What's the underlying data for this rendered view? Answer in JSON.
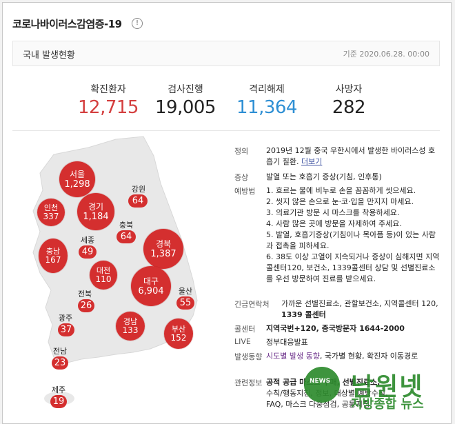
{
  "header": {
    "title": "코로나바이러스감염증-19",
    "info_icon": "!"
  },
  "subbar": {
    "label": "국내 발생현황",
    "timestamp": "기준 2020.06.28. 00:00"
  },
  "stats": [
    {
      "label": "확진환자",
      "value": "12,715",
      "color": "#d43f3f"
    },
    {
      "label": "검사진행",
      "value": "19,005",
      "color": "#222222"
    },
    {
      "label": "격리해제",
      "value": "11,364",
      "color": "#2e8fd4"
    },
    {
      "label": "사망자",
      "value": "282",
      "color": "#222222"
    }
  ],
  "regions": {
    "seoul": {
      "name": "서울",
      "count": "1,298"
    },
    "incheon": {
      "name": "인천",
      "count": "337"
    },
    "gyeonggi": {
      "name": "경기",
      "count": "1,184"
    },
    "gangwon": {
      "name": "강원",
      "count": "64"
    },
    "chungbuk": {
      "name": "충북",
      "count": "64"
    },
    "sejong": {
      "name": "세종",
      "count": "49"
    },
    "chungnam": {
      "name": "충남",
      "count": "167"
    },
    "daejeon": {
      "name": "대전",
      "count": "110"
    },
    "gyeongbuk": {
      "name": "경북",
      "count": "1,387"
    },
    "jeonbuk": {
      "name": "전북",
      "count": "26"
    },
    "daegu": {
      "name": "대구",
      "count": "6,904"
    },
    "ulsan": {
      "name": "울산",
      "count": "55"
    },
    "gwangju": {
      "name": "광주",
      "count": "37"
    },
    "gyeongnam": {
      "name": "경남",
      "count": "133"
    },
    "busan": {
      "name": "부산",
      "count": "152"
    },
    "jeonnam": {
      "name": "전남",
      "count": "23"
    },
    "jeju": {
      "name": "제주",
      "count": "19"
    }
  },
  "info": {
    "definition": {
      "key": "정의",
      "text": "2019년 12월 중국 우한시에서 발생한 바이러스성 호흡기 질환.",
      "more": "더보기"
    },
    "symptom": {
      "key": "증상",
      "text": "발열 또는 호흡기 증상(기침, 인후통)"
    },
    "prevention": {
      "key": "예방법",
      "items": [
        "1. 흐르는 물에 비누로 손을 꼼꼼하게 씻으세요.",
        "2. 씻지 않은 손으로 눈·코·입을 만지지 마세요.",
        "3. 의료기관 방문 시 마스크를 착용하세요.",
        "4. 사람 많은 곳에 방문을 자제하여 주세요.",
        "5. 발열, 호흡기증상(기침이나 목아픔 등)이 있는 사람과 접촉을 피하세요.",
        "6. 38도 이상 고열이 지속되거나 증상이 심해지면 지역콜센터120, 보건소, 1339콜센터 상담 및 선별진료소를 우선 방문하여 진료를 받으세요."
      ]
    },
    "emergency": {
      "key": "긴급연락처",
      "text": "가까운 선별진료소, 관할보건소, 지역콜센터 120,",
      "bold": "1339 콜센터"
    },
    "callcenter": {
      "key": "콜센터",
      "text": "지역국번+120, 중국방문자 1644-2000"
    },
    "live": {
      "key": "LIVE",
      "text": "정부대응발표"
    },
    "trend": {
      "key": "발생동향",
      "link1": "시도별 발생 동향",
      "link2": "국가별 현황",
      "link3": "확진자 이동경로"
    },
    "related": {
      "key": "관련정보",
      "text1": "공적 공급 마스크 구매, 선별진료소,",
      "text2": "수칙/행동지침, 정보, 대상별 예방수칙,",
      "text3": "FAQ, 마스크 다중점검, 공통지침"
    }
  },
  "watermark": {
    "title": "남원넷",
    "sub": "지방종합 뉴스",
    "logo": "NEWS"
  }
}
